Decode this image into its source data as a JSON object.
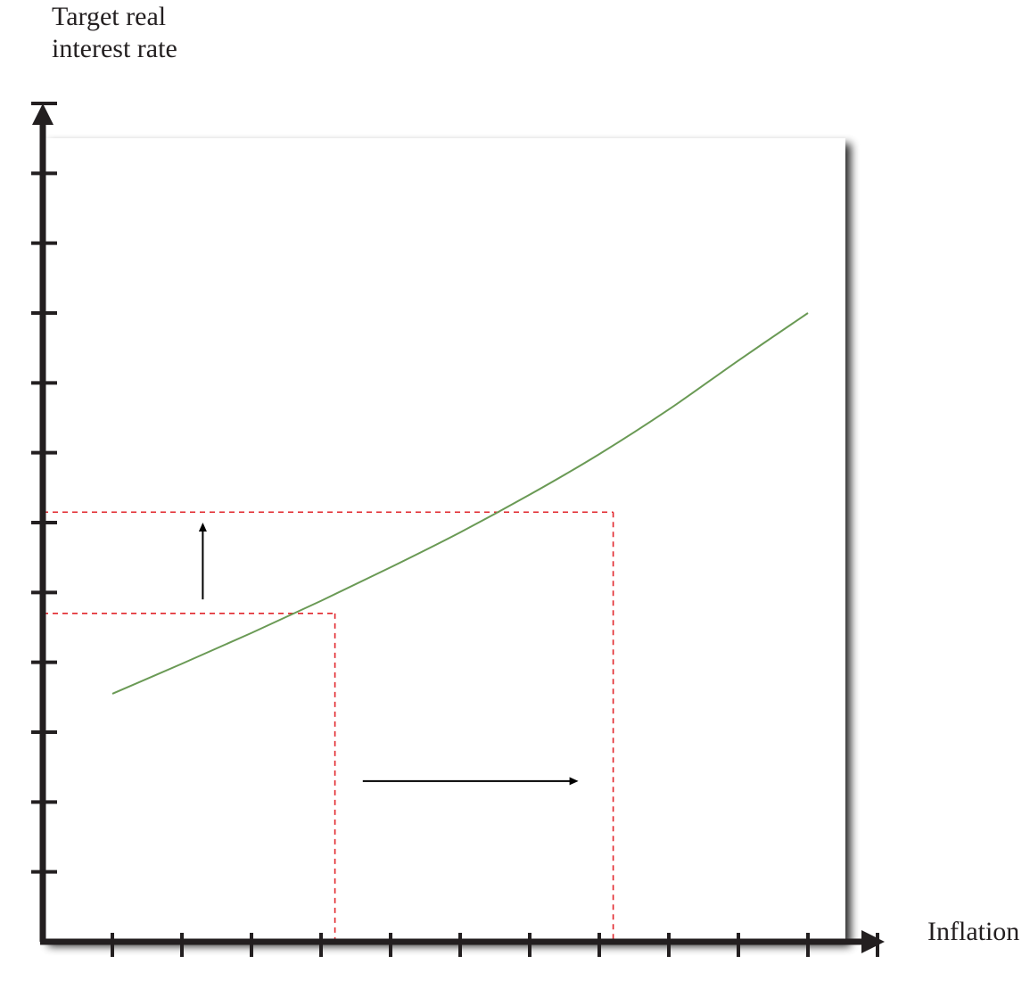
{
  "chart_data": {
    "type": "line",
    "title": "",
    "xlabel": "Inflation",
    "ylabel_lines": [
      "Target real",
      "interest rate"
    ],
    "xlim": [
      0,
      12
    ],
    "ylim": [
      0,
      12
    ],
    "x_ticks": [
      1,
      2,
      3,
      4,
      5,
      6,
      7,
      8,
      9,
      10,
      11,
      12
    ],
    "y_ticks": [
      1,
      2,
      3,
      4,
      5,
      6,
      7,
      8,
      9,
      10,
      11,
      12
    ],
    "tick_labels_shown": false,
    "grid": false,
    "colors": {
      "curve": "#6a9a55",
      "guides": "#e1252b",
      "axes": "#231f20",
      "arrows": "#000000",
      "panel_shadow": "#3a3a3a"
    },
    "series": [
      {
        "x": [
          1.0,
          2.0,
          3.0,
          4.0,
          5.0,
          6.0,
          7.0,
          8.0,
          9.0,
          10.0,
          11.0
        ],
        "y": [
          3.55,
          3.98,
          4.42,
          4.88,
          5.36,
          5.86,
          6.4,
          6.98,
          7.62,
          8.32,
          9.0
        ]
      }
    ],
    "guide_points": [
      {
        "x": 4.2,
        "y": 4.7
      },
      {
        "x": 8.2,
        "y": 6.15
      }
    ],
    "annotations": [
      {
        "type": "arrow",
        "direction": "up",
        "x": 2.3,
        "from_y": 4.9,
        "to_y": 6.0
      },
      {
        "type": "arrow",
        "direction": "right",
        "y": 2.3,
        "from_x": 4.6,
        "to_x": 7.7
      }
    ]
  }
}
